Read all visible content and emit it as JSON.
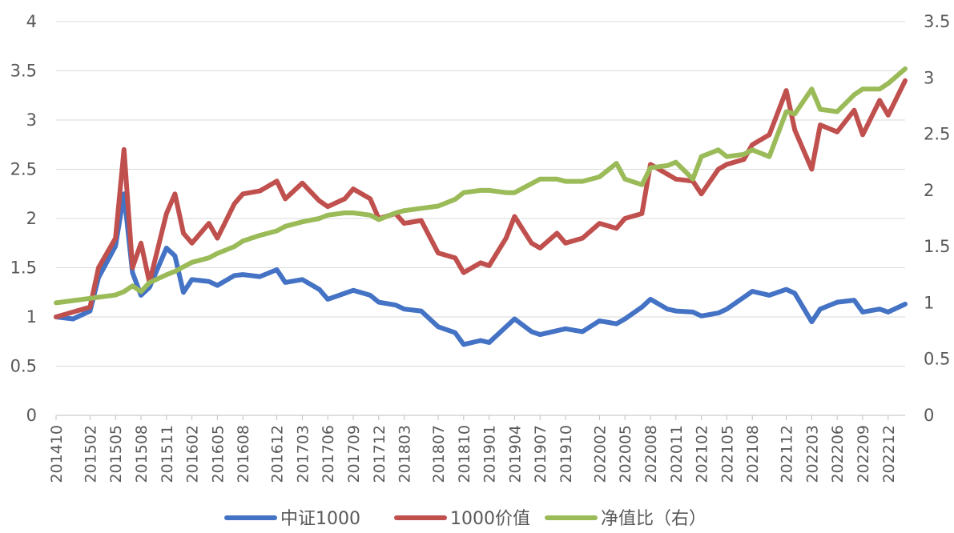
{
  "chart_data": {
    "type": "line",
    "title": "",
    "xlabel": "",
    "ylabel": "",
    "ylim_left": [
      0,
      4
    ],
    "ylim_right": [
      0,
      3.5
    ],
    "yticks_left": [
      "0",
      "0.5",
      "1",
      "1.5",
      "2",
      "2.5",
      "3",
      "3.5",
      "4"
    ],
    "yticks_right": [
      "0",
      "0.5",
      "1",
      "1.5",
      "2",
      "2.5",
      "3",
      "3.5"
    ],
    "grid": true,
    "legend_position": "bottom",
    "x_tick_labels": [
      "201410",
      "201502",
      "201505",
      "201508",
      "201511",
      "201602",
      "201605",
      "201608",
      "201612",
      "201703",
      "201706",
      "201709",
      "201712",
      "201803",
      "201807",
      "201810",
      "201901",
      "201904",
      "201907",
      "201910",
      "202002",
      "202005",
      "202008",
      "202011",
      "202102",
      "202105",
      "202108",
      "202112",
      "202203",
      "202206",
      "202209",
      "202212"
    ],
    "x": [
      "201410",
      "201412",
      "201502",
      "201503",
      "201505",
      "201506",
      "201507",
      "201508",
      "201509",
      "201511",
      "201512",
      "201601",
      "201602",
      "201604",
      "201605",
      "201607",
      "201608",
      "201610",
      "201612",
      "201701",
      "201703",
      "201705",
      "201706",
      "201708",
      "201709",
      "201711",
      "201712",
      "201802",
      "201803",
      "201805",
      "201807",
      "201809",
      "201810",
      "201812",
      "201901",
      "201903",
      "201904",
      "201906",
      "201907",
      "201909",
      "201910",
      "201912",
      "202002",
      "202004",
      "202005",
      "202007",
      "202008",
      "202010",
      "202011",
      "202101",
      "202102",
      "202104",
      "202105",
      "202107",
      "202108",
      "202110",
      "202112",
      "202201",
      "202203",
      "202204",
      "202206",
      "202208",
      "202209",
      "202211",
      "202212",
      "202302"
    ],
    "series": [
      {
        "name": "中证1000",
        "axis": "left",
        "color": "#4472C4",
        "values": [
          1.0,
          0.98,
          1.06,
          1.4,
          1.72,
          2.25,
          1.45,
          1.22,
          1.3,
          1.7,
          1.62,
          1.25,
          1.38,
          1.36,
          1.32,
          1.42,
          1.43,
          1.41,
          1.48,
          1.35,
          1.38,
          1.28,
          1.18,
          1.24,
          1.27,
          1.22,
          1.15,
          1.12,
          1.08,
          1.06,
          0.9,
          0.84,
          0.72,
          0.76,
          0.74,
          0.9,
          0.98,
          0.85,
          0.82,
          0.86,
          0.88,
          0.85,
          0.96,
          0.93,
          0.98,
          1.1,
          1.18,
          1.08,
          1.06,
          1.05,
          1.01,
          1.04,
          1.08,
          1.2,
          1.26,
          1.22,
          1.28,
          1.24,
          0.95,
          1.08,
          1.15,
          1.17,
          1.05,
          1.08,
          1.05,
          1.13
        ]
      },
      {
        "name": "1000价值",
        "axis": "left",
        "color": "#C0504D",
        "values": [
          1.0,
          1.05,
          1.1,
          1.5,
          1.8,
          2.7,
          1.5,
          1.75,
          1.35,
          2.05,
          2.25,
          1.85,
          1.75,
          1.95,
          1.8,
          2.15,
          2.25,
          2.28,
          2.38,
          2.2,
          2.36,
          2.18,
          2.12,
          2.2,
          2.3,
          2.2,
          2.0,
          2.05,
          1.95,
          1.98,
          1.65,
          1.6,
          1.45,
          1.55,
          1.52,
          1.8,
          2.02,
          1.75,
          1.7,
          1.85,
          1.75,
          1.8,
          1.95,
          1.9,
          2.0,
          2.05,
          2.55,
          2.45,
          2.4,
          2.38,
          2.25,
          2.5,
          2.55,
          2.6,
          2.75,
          2.85,
          3.3,
          2.9,
          2.5,
          2.95,
          2.88,
          3.1,
          2.85,
          3.2,
          3.05,
          3.4
        ]
      },
      {
        "name": "净值比（右）",
        "axis": "right",
        "color": "#9BBB59",
        "values": [
          1.0,
          1.02,
          1.04,
          1.05,
          1.07,
          1.1,
          1.15,
          1.1,
          1.18,
          1.25,
          1.28,
          1.32,
          1.36,
          1.4,
          1.44,
          1.5,
          1.55,
          1.6,
          1.64,
          1.68,
          1.72,
          1.75,
          1.78,
          1.8,
          1.8,
          1.78,
          1.74,
          1.8,
          1.82,
          1.84,
          1.86,
          1.92,
          1.98,
          2.0,
          2.0,
          1.98,
          1.98,
          2.06,
          2.1,
          2.1,
          2.08,
          2.08,
          2.12,
          2.24,
          2.1,
          2.05,
          2.2,
          2.22,
          2.25,
          2.1,
          2.3,
          2.36,
          2.3,
          2.32,
          2.36,
          2.3,
          2.7,
          2.68,
          2.9,
          2.72,
          2.7,
          2.85,
          2.9,
          2.9,
          2.95,
          3.08
        ]
      }
    ]
  }
}
